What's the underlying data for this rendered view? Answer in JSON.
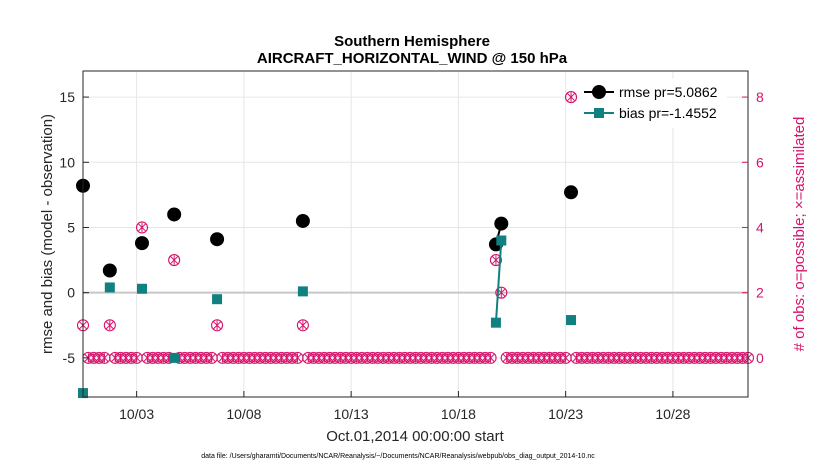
{
  "chart_data": {
    "type": "scatter",
    "title": "Southern Hemisphere",
    "subtitle": "AIRCRAFT_HORIZONTAL_WIND @ 150 hPa",
    "xlabel": "Oct.01,2014 00:00:00 start",
    "ylabel": "rmse and bias (model - observation)",
    "y2label": "# of obs: o=possible; ×=assimilated",
    "footnote": "data file: /Users/gharamti/Documents/NCAR/Reanalysis/~/Documents/NCAR/Reanalysis/webpub/obs_diag_output_2014-10.nc",
    "xlim": [
      0.5,
      31.5
    ],
    "ylim": [
      -8,
      17
    ],
    "y2lim": [
      -1.2,
      8.8
    ],
    "grid": true,
    "legend_placement": "top-right",
    "xticks": [
      {
        "value": 3,
        "label": "10/03"
      },
      {
        "value": 8,
        "label": "10/08"
      },
      {
        "value": 13,
        "label": "10/13"
      },
      {
        "value": 18,
        "label": "10/18"
      },
      {
        "value": 23,
        "label": "10/23"
      },
      {
        "value": 28,
        "label": "10/28"
      }
    ],
    "yticks": [
      {
        "value": -5,
        "label": "-5"
      },
      {
        "value": 0,
        "label": "0"
      },
      {
        "value": 5,
        "label": "5"
      },
      {
        "value": 10,
        "label": "10"
      },
      {
        "value": 15,
        "label": "15"
      }
    ],
    "y2ticks": [
      {
        "value": 0,
        "label": "0"
      },
      {
        "value": 2,
        "label": "2"
      },
      {
        "value": 4,
        "label": "4"
      },
      {
        "value": 6,
        "label": "6"
      },
      {
        "value": 8,
        "label": "8"
      }
    ],
    "series": [
      {
        "name": "rmse pr=5.0862",
        "color": "#000000",
        "marker": "circle",
        "points": [
          [
            0.5,
            8.2
          ],
          [
            1.75,
            1.7
          ],
          [
            3.25,
            3.8
          ],
          [
            4.75,
            6.0
          ],
          [
            6.75,
            4.1
          ],
          [
            10.75,
            5.5
          ],
          [
            19.75,
            3.7
          ],
          [
            20.0,
            5.3
          ],
          [
            23.25,
            7.7
          ]
        ],
        "segments": [
          [
            [
              19.75,
              3.7
            ],
            [
              20.0,
              5.3
            ]
          ]
        ]
      },
      {
        "name": "bias pr=-1.4552",
        "color": "#118080",
        "marker": "square",
        "points": [
          [
            0.5,
            -7.7
          ],
          [
            1.75,
            0.4
          ],
          [
            3.25,
            0.3
          ],
          [
            4.75,
            -5.0
          ],
          [
            6.75,
            -0.5
          ],
          [
            10.75,
            0.1
          ],
          [
            19.75,
            -2.3
          ],
          [
            20.0,
            4.0
          ],
          [
            23.25,
            -2.1
          ]
        ],
        "segments": [
          [
            [
              19.75,
              -2.3
            ],
            [
              20.0,
              4.0
            ]
          ]
        ]
      }
    ],
    "obs_possible": [
      [
        0.5,
        1
      ],
      [
        1.75,
        1
      ],
      [
        3.25,
        4
      ],
      [
        4.75,
        3
      ],
      [
        6.75,
        1
      ],
      [
        10.75,
        1
      ],
      [
        19.75,
        3
      ],
      [
        20.0,
        2
      ],
      [
        23.25,
        8
      ]
    ],
    "obs_assimilated": [
      [
        0.5,
        1
      ],
      [
        1.75,
        1
      ],
      [
        3.25,
        4
      ],
      [
        4.75,
        3
      ],
      [
        6.75,
        1
      ],
      [
        10.75,
        1
      ],
      [
        19.75,
        3
      ],
      [
        20.0,
        2
      ],
      [
        23.25,
        8
      ]
    ],
    "obs_color": "#d6136b",
    "zero_color": "#c8c8c8"
  }
}
